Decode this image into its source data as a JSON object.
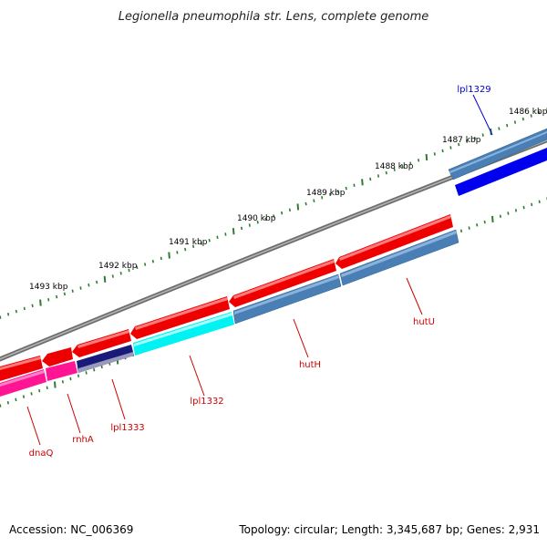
{
  "title": "Legionella pneumophila str. Lens, complete genome",
  "footer": {
    "accession": "Accession: NC_006369",
    "summary": "Topology: circular; Length: 3,345,687 bp; Genes: 2,931"
  },
  "ruler_ticks": [
    "1486 kbp",
    "1487 kbp",
    "1488 kbp",
    "1489 kbp",
    "1490 kbp",
    "1491 kbp",
    "1492 kbp",
    "1493 kbp"
  ],
  "genes": [
    {
      "name": "lpl1329",
      "label_color": "#0000cc"
    },
    {
      "name": "hutU",
      "label_color": "#cc0000"
    },
    {
      "name": "hutH",
      "label_color": "#cc0000"
    },
    {
      "name": "lpl1332",
      "label_color": "#cc0000"
    },
    {
      "name": "lpl1333",
      "label_color": "#cc0000"
    },
    {
      "name": "rnhA",
      "label_color": "#cc0000"
    },
    {
      "name": "dnaQ",
      "label_color": "#cc0000"
    }
  ],
  "colors": {
    "backbone": "#808080",
    "cds_reverse": "#ee0000",
    "cds_forward": "#ff0000",
    "steelblue": "#4a7fb5",
    "cyan": "#00ffff",
    "navy": "#0a0a6e",
    "pink": "#ff1493",
    "blue": "#0000ee",
    "tick_green": "#2e7d2e"
  }
}
